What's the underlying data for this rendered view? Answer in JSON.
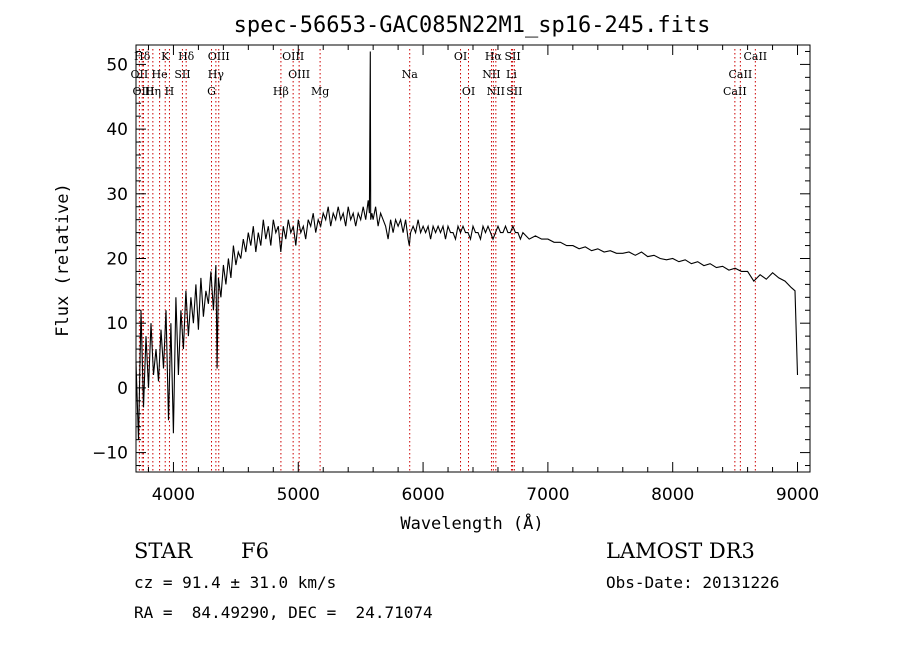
{
  "chart_data": {
    "type": "line",
    "title": "spec-56653-GAC085N22M1_sp16-245.fits",
    "xlabel": "Wavelength (Å)",
    "ylabel": "Flux (relative)",
    "xlim": [
      3700,
      9100
    ],
    "ylim": [
      -13,
      53
    ],
    "x_ticks": [
      4000,
      5000,
      6000,
      7000,
      8000,
      9000
    ],
    "y_ticks": [
      -10,
      0,
      10,
      20,
      30,
      40,
      50
    ],
    "x_tick_labels": [
      "4000",
      "5000",
      "6000",
      "7000",
      "8000",
      "9000"
    ],
    "y_tick_labels": [
      "−10",
      "0",
      "10",
      "20",
      "30",
      "40",
      "50"
    ],
    "series": [
      {
        "name": "spectrum",
        "color": "#000000",
        "x": [
          3700,
          3720,
          3740,
          3760,
          3780,
          3800,
          3820,
          3840,
          3860,
          3880,
          3900,
          3920,
          3940,
          3960,
          3980,
          4000,
          4020,
          4040,
          4060,
          4080,
          4100,
          4120,
          4140,
          4160,
          4180,
          4200,
          4220,
          4240,
          4260,
          4280,
          4300,
          4320,
          4340,
          4350,
          4360,
          4380,
          4400,
          4420,
          4440,
          4460,
          4480,
          4500,
          4520,
          4540,
          4560,
          4580,
          4600,
          4620,
          4640,
          4660,
          4680,
          4700,
          4720,
          4740,
          4760,
          4780,
          4800,
          4820,
          4840,
          4860,
          4880,
          4900,
          4920,
          4940,
          4960,
          4980,
          5000,
          5020,
          5040,
          5060,
          5080,
          5100,
          5120,
          5140,
          5160,
          5180,
          5200,
          5220,
          5240,
          5260,
          5280,
          5300,
          5320,
          5340,
          5360,
          5380,
          5400,
          5420,
          5440,
          5460,
          5480,
          5500,
          5520,
          5540,
          5560,
          5570,
          5577,
          5580,
          5590,
          5600,
          5620,
          5640,
          5660,
          5680,
          5700,
          5720,
          5740,
          5760,
          5780,
          5800,
          5820,
          5840,
          5860,
          5880,
          5890,
          5900,
          5920,
          5940,
          5960,
          5980,
          6000,
          6020,
          6040,
          6060,
          6080,
          6100,
          6120,
          6140,
          6160,
          6180,
          6200,
          6220,
          6240,
          6260,
          6280,
          6300,
          6320,
          6340,
          6360,
          6380,
          6400,
          6420,
          6440,
          6460,
          6480,
          6500,
          6520,
          6540,
          6560,
          6580,
          6600,
          6620,
          6640,
          6660,
          6680,
          6700,
          6720,
          6740,
          6760,
          6780,
          6800,
          6850,
          6900,
          6950,
          7000,
          7050,
          7100,
          7150,
          7200,
          7250,
          7300,
          7350,
          7400,
          7450,
          7500,
          7550,
          7600,
          7650,
          7700,
          7750,
          7800,
          7850,
          7900,
          7950,
          8000,
          8050,
          8100,
          8150,
          8200,
          8250,
          8300,
          8350,
          8400,
          8450,
          8500,
          8550,
          8600,
          8650,
          8700,
          8750,
          8800,
          8850,
          8900,
          8950,
          8980,
          9000
        ],
        "y": [
          4,
          -8,
          12,
          -3,
          8,
          0,
          10,
          2,
          6,
          1,
          9,
          3,
          12,
          -5,
          10,
          -7,
          14,
          2,
          12,
          6,
          15,
          8,
          14,
          10,
          16,
          9,
          17,
          11,
          15,
          13,
          18,
          12,
          19,
          3,
          17,
          14,
          19,
          16,
          20,
          17,
          22,
          19,
          21,
          20,
          23,
          21,
          24,
          22,
          25,
          21,
          24,
          22,
          26,
          23,
          25,
          22,
          26,
          24,
          25,
          21,
          25,
          23,
          26,
          24,
          25,
          22,
          26,
          24,
          25,
          23,
          26,
          25,
          27,
          24,
          26,
          25,
          27,
          26,
          28,
          25,
          27,
          26,
          28,
          26,
          27,
          25,
          28,
          26,
          27,
          25,
          27,
          26,
          28,
          26,
          29,
          27,
          52,
          26,
          27,
          26,
          28,
          25,
          27,
          26,
          25,
          23,
          26,
          24,
          26,
          25,
          26,
          24,
          26,
          23,
          22,
          24,
          25,
          24,
          26,
          24,
          25,
          24,
          25,
          23,
          25,
          24,
          25,
          24,
          25,
          23,
          25,
          24,
          24,
          23,
          25,
          24,
          25,
          24,
          24,
          23,
          25,
          24,
          24,
          23,
          25,
          24,
          25,
          24,
          23,
          24,
          25,
          24,
          24,
          25,
          24,
          24,
          25,
          24,
          24,
          23,
          24,
          23,
          23.5,
          23,
          23,
          22.5,
          22.5,
          22,
          22,
          21.5,
          21.8,
          21.2,
          21.5,
          21,
          21.2,
          20.8,
          20.8,
          21,
          20.5,
          21,
          20.3,
          20.5,
          20,
          19.8,
          20,
          19.5,
          19.8,
          19.2,
          19.5,
          18.9,
          19.2,
          18.6,
          18.8,
          18.2,
          18.5,
          18,
          18,
          16.5,
          17.5,
          16.8,
          17.8,
          17,
          16.5,
          15.5,
          15,
          2
        ]
      }
    ],
    "emission_lines": [
      {
        "label": "Hδ",
        "wavelength": 3750,
        "row": 0
      },
      {
        "label": "K",
        "wavelength": 3934,
        "row": 0
      },
      {
        "label": "Hδ",
        "wavelength": 4102,
        "row": 0
      },
      {
        "label": "OIII",
        "wavelength": 4363,
        "row": 0
      },
      {
        "label": "OIII",
        "wavelength": 4959,
        "row": 0
      },
      {
        "label": "OI",
        "wavelength": 6300,
        "row": 0
      },
      {
        "label": "Hα",
        "wavelength": 6563,
        "row": 0
      },
      {
        "label": "SII",
        "wavelength": 6717,
        "row": 0
      },
      {
        "label": "CaII",
        "wavelength": 8662,
        "row": 0
      },
      {
        "label": "OII",
        "wavelength": 3727,
        "row": 1
      },
      {
        "label": "He",
        "wavelength": 3889,
        "row": 1
      },
      {
        "label": "SII",
        "wavelength": 4072,
        "row": 1
      },
      {
        "label": "Hγ",
        "wavelength": 4340,
        "row": 1
      },
      {
        "label": "OIII",
        "wavelength": 5007,
        "row": 1
      },
      {
        "label": "Na",
        "wavelength": 5893,
        "row": 1
      },
      {
        "label": "NII",
        "wavelength": 6548,
        "row": 1
      },
      {
        "label": "Li",
        "wavelength": 6708,
        "row": 1
      },
      {
        "label": "CaII",
        "wavelength": 8542,
        "row": 1
      },
      {
        "label": "OIII",
        "wavelength": 3760,
        "row": 2
      },
      {
        "label": "Hη",
        "wavelength": 3835,
        "row": 2
      },
      {
        "label": "H",
        "wavelength": 3968,
        "row": 2
      },
      {
        "label": "G",
        "wavelength": 4305,
        "row": 2
      },
      {
        "label": "Hβ",
        "wavelength": 4861,
        "row": 2
      },
      {
        "label": "Mg",
        "wavelength": 5175,
        "row": 2
      },
      {
        "label": "OI",
        "wavelength": 6364,
        "row": 2
      },
      {
        "label": "NII",
        "wavelength": 6583,
        "row": 2
      },
      {
        "label": "SII",
        "wavelength": 6731,
        "row": 2
      },
      {
        "label": "CaII",
        "wavelength": 8498,
        "row": 2
      }
    ],
    "extra_line_markers": [
      3798,
      3889,
      4102,
      4340,
      4861,
      5007,
      6548,
      6563,
      6583,
      6717,
      6731,
      8498,
      8542,
      8662
    ]
  },
  "info": {
    "object_type": "STAR",
    "subclass": "F6",
    "survey": "LAMOST DR3",
    "cz": "cz = 91.4 ± 31.0 km/s",
    "obs_date": "Obs-Date: 20131226",
    "coords": "RA =  84.49290, DEC =  24.71074"
  },
  "colors": {
    "line_marker": "#cc0000",
    "spectrum": "#000000",
    "axes": "#000000"
  }
}
